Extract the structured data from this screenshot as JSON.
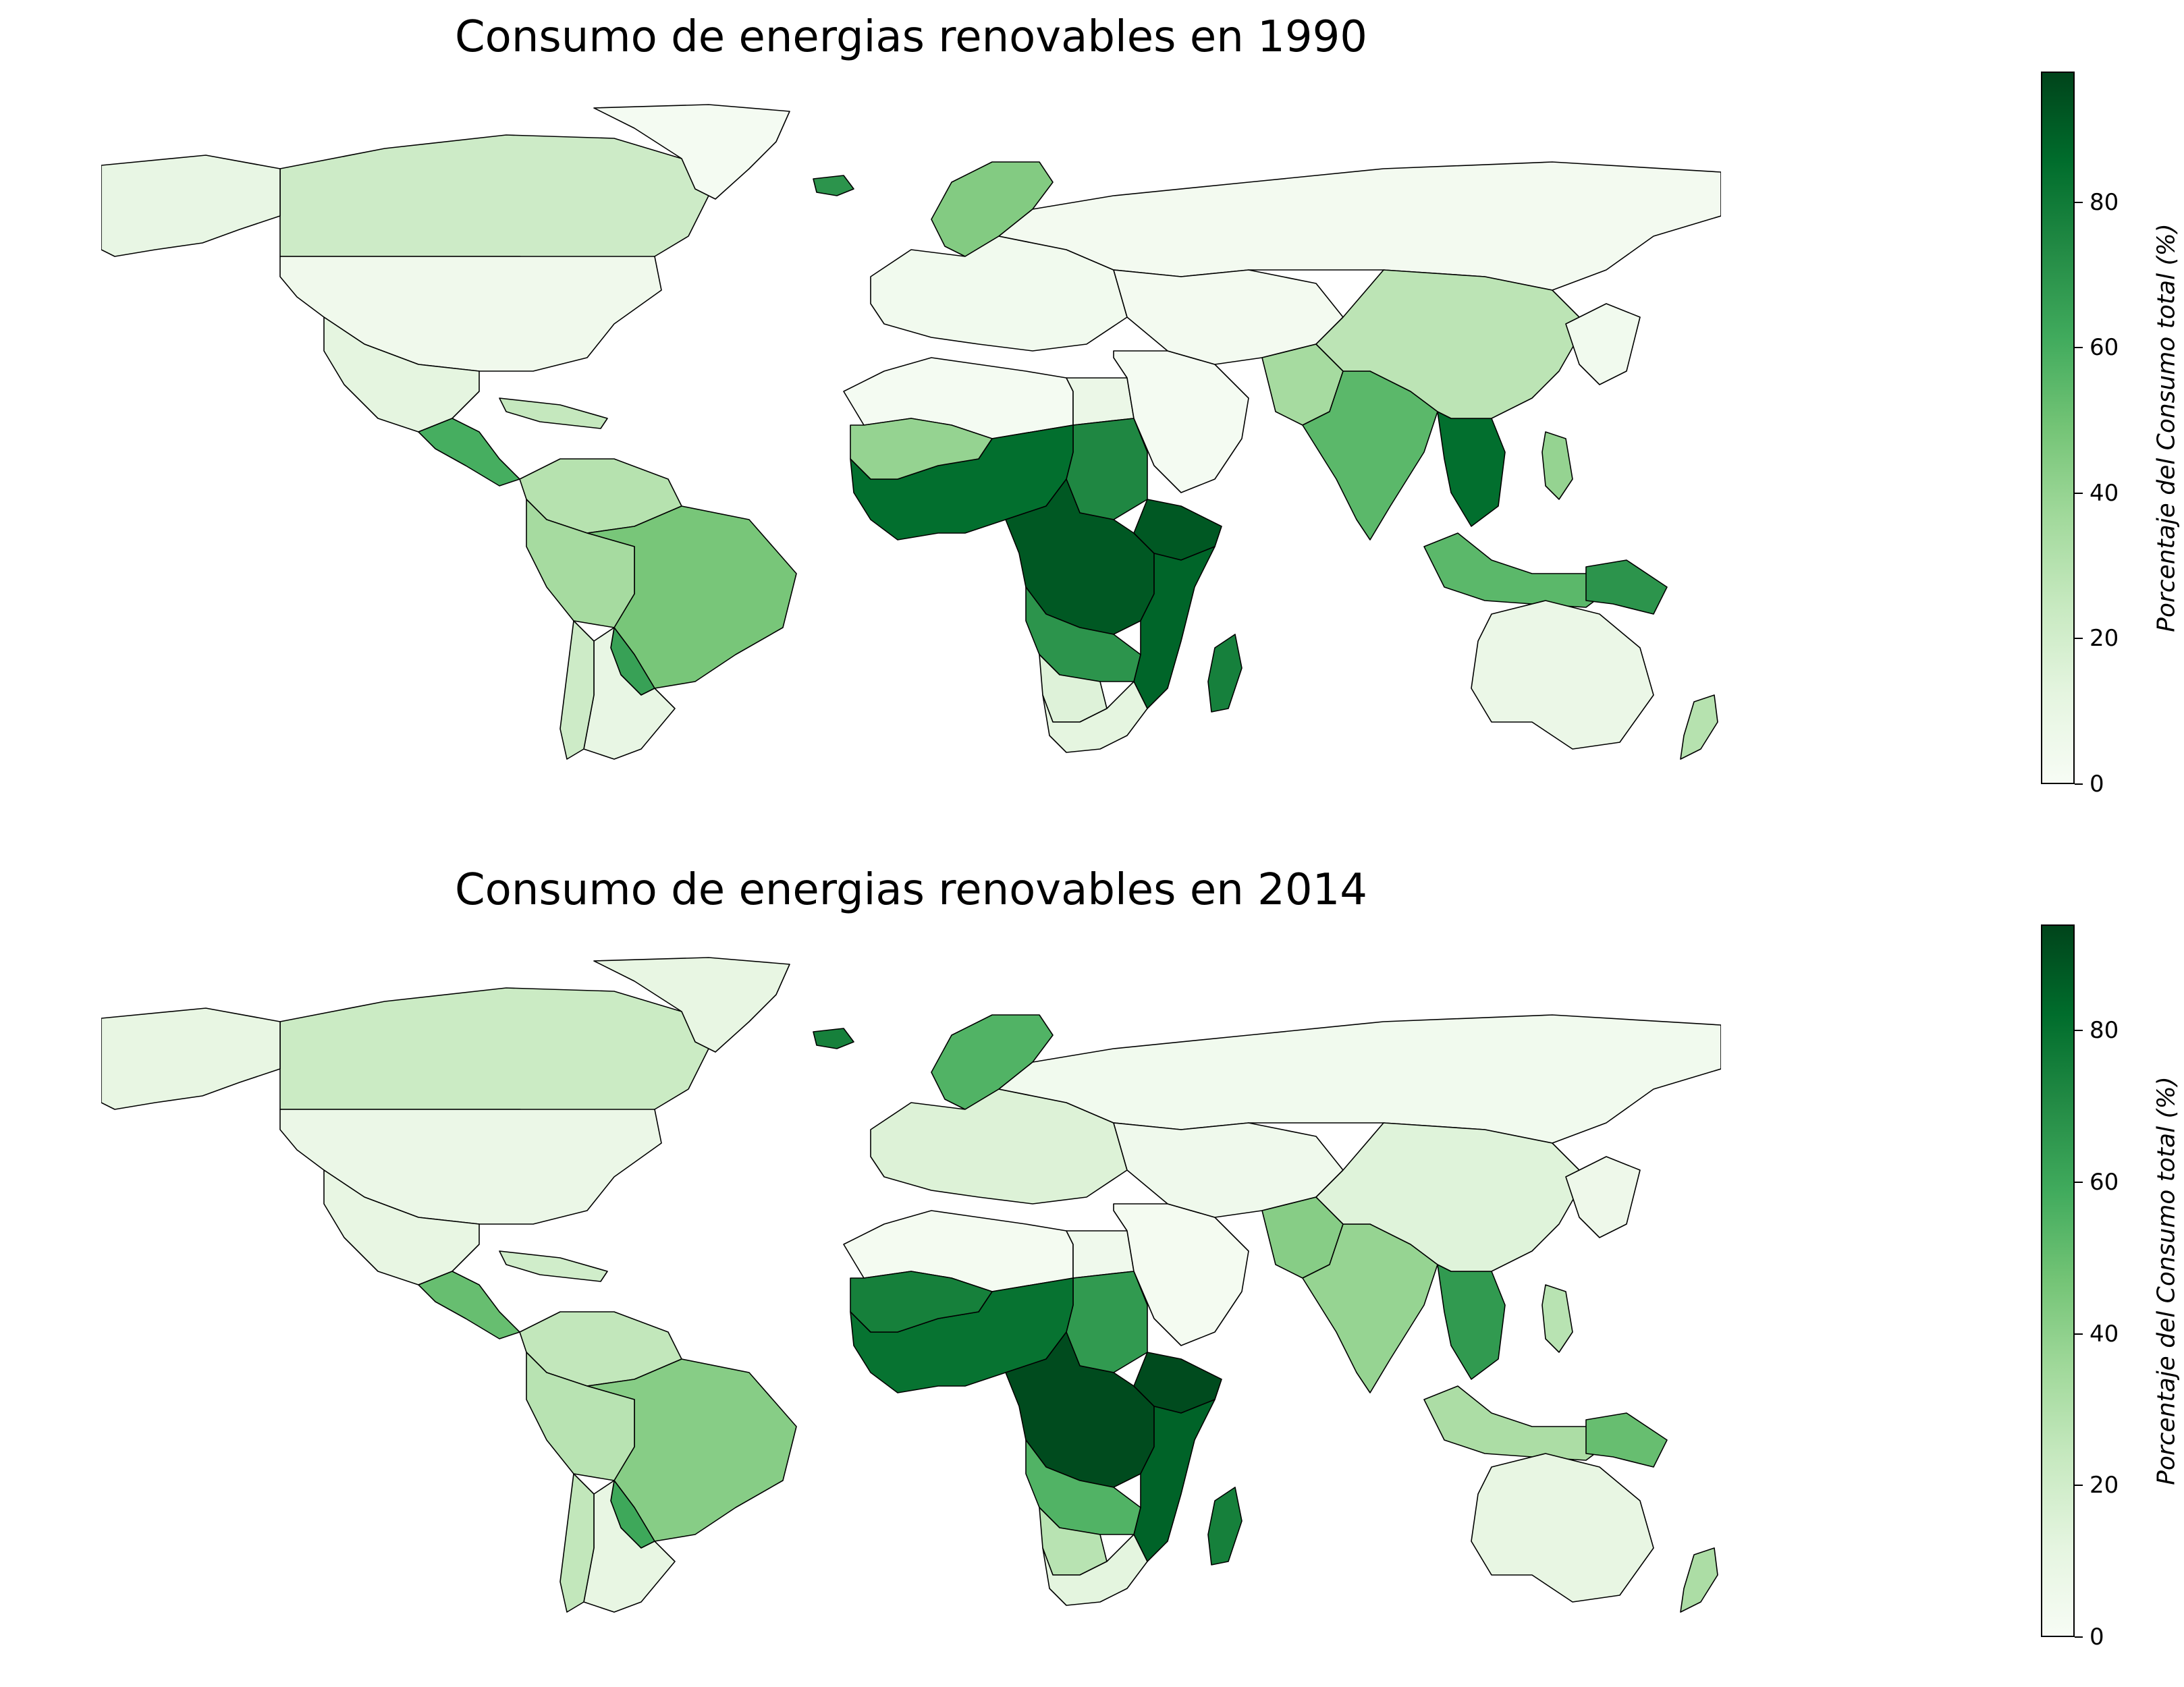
{
  "maps": [
    {
      "title": "Consumo de energias renovables en 1990",
      "colorbar": {
        "label": "Porcentaje del Consumo total (%)",
        "min": 0,
        "max": 98,
        "ticks": [
          "0",
          "20",
          "40",
          "60",
          "80"
        ],
        "tick_values": [
          0,
          20,
          40,
          60,
          80
        ]
      },
      "regions": [
        {
          "name": "Canada",
          "value": 22
        },
        {
          "name": "Alaska",
          "value": 10
        },
        {
          "name": "Greenland",
          "value": 2
        },
        {
          "name": "United States",
          "value": 5
        },
        {
          "name": "Mexico",
          "value": 12
        },
        {
          "name": "Central America",
          "value": 60
        },
        {
          "name": "Caribbean",
          "value": 25
        },
        {
          "name": "Colombia Venezuela",
          "value": 30
        },
        {
          "name": "Brazil",
          "value": 48
        },
        {
          "name": "Peru Bolivia",
          "value": 35
        },
        {
          "name": "Paraguay",
          "value": 65
        },
        {
          "name": "Argentina",
          "value": 10
        },
        {
          "name": "Chile",
          "value": 22
        },
        {
          "name": "Iceland",
          "value": 70
        },
        {
          "name": "Scandinavia",
          "value": 45
        },
        {
          "name": "Europe",
          "value": 4
        },
        {
          "name": "Russia",
          "value": 3
        },
        {
          "name": "North Africa",
          "value": 2
        },
        {
          "name": "Egypt",
          "value": 8
        },
        {
          "name": "Sudan",
          "value": 75
        },
        {
          "name": "West Africa",
          "value": 85
        },
        {
          "name": "Sahel",
          "value": 40
        },
        {
          "name": "Central Africa",
          "value": 92
        },
        {
          "name": "Ethiopia",
          "value": 92
        },
        {
          "name": "East Africa",
          "value": 88
        },
        {
          "name": "Angola Zambia",
          "value": 70
        },
        {
          "name": "Namibia Botswana",
          "value": 15
        },
        {
          "name": "South Africa",
          "value": 12
        },
        {
          "name": "Madagascar",
          "value": 78
        },
        {
          "name": "Middle East",
          "value": 2
        },
        {
          "name": "Central Asia",
          "value": 3
        },
        {
          "name": "Pakistan",
          "value": 35
        },
        {
          "name": "India",
          "value": 55
        },
        {
          "name": "Myanmar Indochina",
          "value": 85
        },
        {
          "name": "China",
          "value": 28
        },
        {
          "name": "Japan Korea",
          "value": 4
        },
        {
          "name": "Indonesia",
          "value": 55
        },
        {
          "name": "Philippines",
          "value": 40
        },
        {
          "name": "Papua New Guinea",
          "value": 70
        },
        {
          "name": "Australia",
          "value": 8
        },
        {
          "name": "New Zealand",
          "value": 30
        }
      ]
    },
    {
      "title": "Consumo de energias renovables en 2014",
      "colorbar": {
        "label": "Porcentaje del Consumo total (%)",
        "min": 0,
        "max": 94,
        "ticks": [
          "0",
          "20",
          "40",
          "60",
          "80"
        ],
        "tick_values": [
          0,
          20,
          40,
          60,
          80
        ]
      },
      "regions": [
        {
          "name": "Canada",
          "value": 22
        },
        {
          "name": "Alaska",
          "value": 10
        },
        {
          "name": "Greenland",
          "value": 10
        },
        {
          "name": "United States",
          "value": 8
        },
        {
          "name": "Mexico",
          "value": 10
        },
        {
          "name": "Central America",
          "value": 50
        },
        {
          "name": "Caribbean",
          "value": 20
        },
        {
          "name": "Colombia Venezuela",
          "value": 25
        },
        {
          "name": "Brazil",
          "value": 42
        },
        {
          "name": "Peru Bolivia",
          "value": 28
        },
        {
          "name": "Paraguay",
          "value": 60
        },
        {
          "name": "Argentina",
          "value": 10
        },
        {
          "name": "Chile",
          "value": 25
        },
        {
          "name": "Iceland",
          "value": 75
        },
        {
          "name": "Scandinavia",
          "value": 55
        },
        {
          "name": "Europe",
          "value": 15
        },
        {
          "name": "Russia",
          "value": 4
        },
        {
          "name": "North Africa",
          "value": 2
        },
        {
          "name": "Egypt",
          "value": 5
        },
        {
          "name": "Sudan",
          "value": 65
        },
        {
          "name": "West Africa",
          "value": 80
        },
        {
          "name": "Sahel",
          "value": 75
        },
        {
          "name": "Central Africa",
          "value": 92
        },
        {
          "name": "Ethiopia",
          "value": 92
        },
        {
          "name": "East Africa",
          "value": 85
        },
        {
          "name": "Angola Zambia",
          "value": 55
        },
        {
          "name": "Namibia Botswana",
          "value": 28
        },
        {
          "name": "South Africa",
          "value": 12
        },
        {
          "name": "Madagascar",
          "value": 75
        },
        {
          "name": "Middle East",
          "value": 2
        },
        {
          "name": "Central Asia",
          "value": 5
        },
        {
          "name": "Pakistan",
          "value": 42
        },
        {
          "name": "India",
          "value": 38
        },
        {
          "name": "Myanmar Indochina",
          "value": 65
        },
        {
          "name": "China",
          "value": 14
        },
        {
          "name": "Japan Korea",
          "value": 6
        },
        {
          "name": "Indonesia",
          "value": 32
        },
        {
          "name": "Philippines",
          "value": 28
        },
        {
          "name": "Papua New Guinea",
          "value": 50
        },
        {
          "name": "Australia",
          "value": 10
        },
        {
          "name": "New Zealand",
          "value": 32
        }
      ]
    }
  ]
}
